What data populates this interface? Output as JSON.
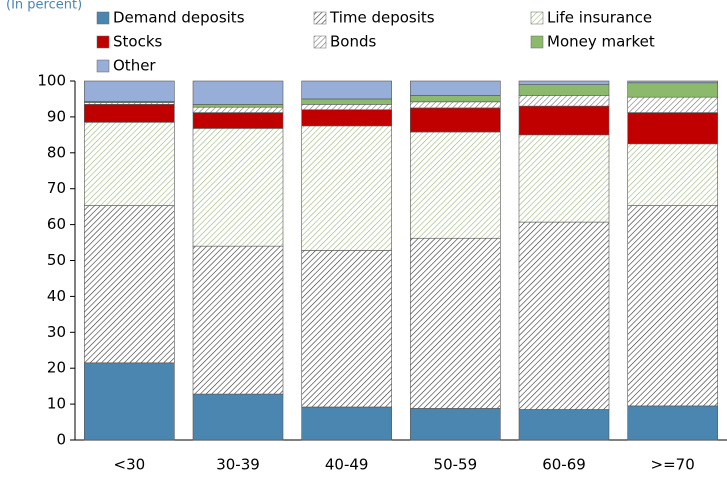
{
  "chart_data": {
    "type": "stacked-bar",
    "subtitle": "(In percent)",
    "categories": [
      "<30",
      "30-39",
      "40-49",
      "50-59",
      "60-69",
      ">=70"
    ],
    "series": [
      {
        "name": "Demand deposits",
        "color": "#4a86b0",
        "values": [
          21.5,
          12.8,
          9.2,
          8.8,
          8.5,
          9.5
        ]
      },
      {
        "name": "Time deposits",
        "color": "#333333",
        "hatch": true,
        "values": [
          43.8,
          41.2,
          43.6,
          47.4,
          52.2,
          55.8
        ]
      },
      {
        "name": "Life insurance",
        "color": "#9ab878",
        "hatch": true,
        "values": [
          23.2,
          32.8,
          34.7,
          29.6,
          24.3,
          17.2
        ]
      },
      {
        "name": "Stocks",
        "color": "#c00000",
        "values": [
          5.0,
          4.4,
          4.5,
          6.7,
          8.0,
          8.7
        ]
      },
      {
        "name": "Bonds",
        "color": "#777777",
        "hatch": true,
        "values": [
          0.5,
          1.5,
          1.5,
          1.7,
          3.0,
          4.3
        ]
      },
      {
        "name": "Money market",
        "color": "#8cba6c",
        "values": [
          0.3,
          0.8,
          1.5,
          1.8,
          3.0,
          4.0
        ]
      },
      {
        "name": "Other",
        "color": "#96aed8",
        "values": [
          5.7,
          6.5,
          5.0,
          4.0,
          1.0,
          0.5
        ]
      }
    ],
    "ylim": [
      0,
      100
    ],
    "yticks": [
      0,
      10,
      20,
      30,
      40,
      50,
      60,
      70,
      80,
      90,
      100
    ]
  }
}
